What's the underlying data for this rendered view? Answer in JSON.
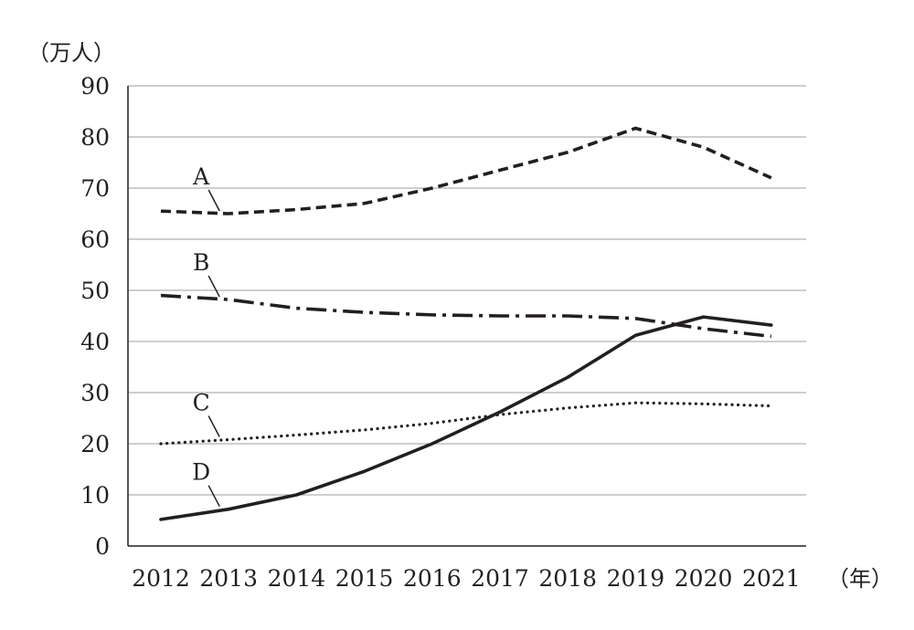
{
  "chart_data": {
    "type": "line",
    "title": "",
    "ylabel": "（万人）",
    "xlabel": "（年）",
    "x": [
      "2012",
      "2013",
      "2014",
      "2015",
      "2016",
      "2017",
      "2018",
      "2019",
      "2020",
      "2021"
    ],
    "yticks": [
      "0",
      "10",
      "20",
      "30",
      "40",
      "50",
      "60",
      "70",
      "80",
      "90"
    ],
    "ylim": [
      0,
      90
    ],
    "grid": true,
    "legend": "inline labels",
    "series": [
      {
        "name": "A",
        "style": "dashed",
        "values": [
          65.5,
          65.0,
          65.8,
          67.0,
          70.0,
          73.5,
          77.0,
          81.7,
          78.0,
          72.0
        ]
      },
      {
        "name": "B",
        "style": "dash-dot",
        "values": [
          49.0,
          48.2,
          46.5,
          45.7,
          45.2,
          45.0,
          45.0,
          44.5,
          42.5,
          41.0
        ]
      },
      {
        "name": "C",
        "style": "dotted",
        "values": [
          20.0,
          20.8,
          21.7,
          22.7,
          24.0,
          25.7,
          27.0,
          28.0,
          27.8,
          27.4
        ]
      },
      {
        "name": "D",
        "style": "solid",
        "values": [
          5.2,
          7.2,
          10.0,
          14.6,
          20.0,
          26.2,
          33.0,
          41.2,
          44.8,
          43.2
        ]
      }
    ],
    "label_anchor_index": [
      1,
      1,
      1,
      1
    ]
  }
}
